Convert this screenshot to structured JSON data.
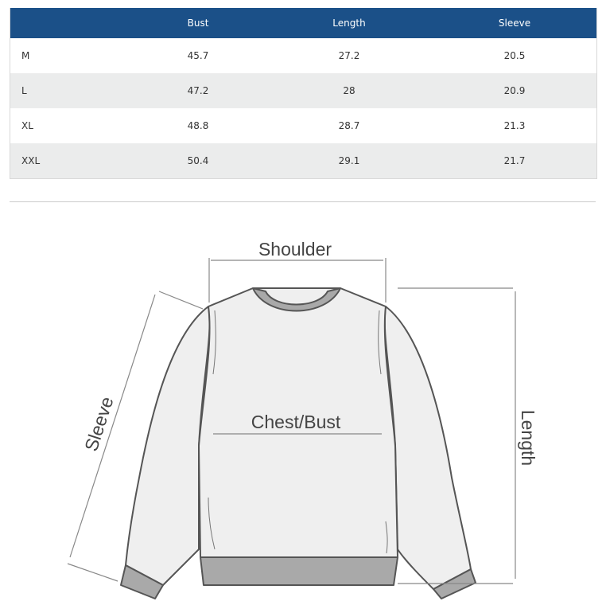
{
  "table": {
    "headers": [
      "",
      "Bust",
      "Length",
      "Sleeve"
    ],
    "rows": [
      {
        "size": "M",
        "bust": "45.7",
        "length": "27.2",
        "sleeve": "20.5"
      },
      {
        "size": "L",
        "bust": "47.2",
        "length": "28",
        "sleeve": "20.9"
      },
      {
        "size": "XL",
        "bust": "48.8",
        "length": "28.7",
        "sleeve": "21.3"
      },
      {
        "size": "XXL",
        "bust": "50.4",
        "length": "29.1",
        "sleeve": "21.7"
      }
    ],
    "header_color": "#1b5088"
  },
  "diagram": {
    "shoulder_label": "Shoulder",
    "chest_label": "Chest/Bust",
    "length_label": "Length",
    "sleeve_label": "Sleeve"
  }
}
